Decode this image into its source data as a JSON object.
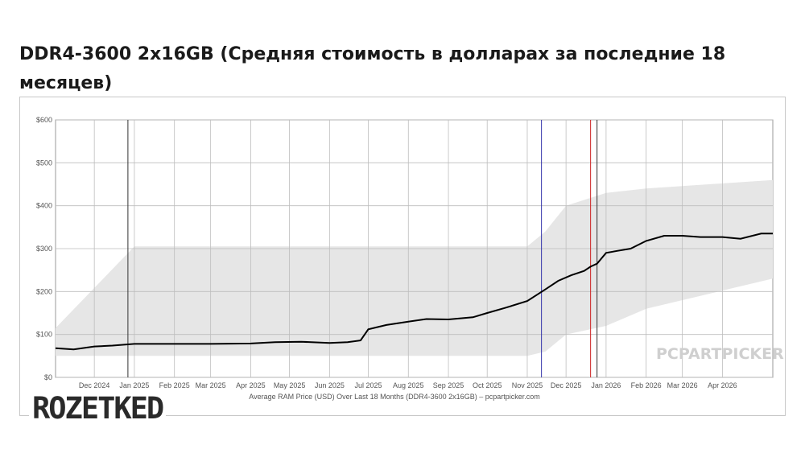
{
  "headline": "DDR4-3600 2x16GB (Средняя стоимость в долларах за последние 18 месяцев)",
  "brand": "ROZETKED",
  "chart_data": {
    "type": "line",
    "xlabel": "Average RAM Price (USD) Over Last 18 Months (DDR4-3600 2x16GB) – pcpartpicker.com",
    "ylabel": "",
    "watermark": "PCPARTPICKER",
    "xlim": [
      "2024-11-01",
      "2026-05-10"
    ],
    "ylim": [
      0,
      600
    ],
    "y_ticks": [
      0,
      100,
      200,
      300,
      400,
      500,
      600
    ],
    "y_tick_labels": [
      "$0",
      "$100",
      "$200",
      "$300",
      "$400",
      "$500",
      "$600"
    ],
    "x_ticks": [
      {
        "date": "2024-12-01",
        "label": "Dec 2024"
      },
      {
        "date": "2025-01-01",
        "label": "Jan 2025"
      },
      {
        "date": "2025-02-01",
        "label": "Feb 2025"
      },
      {
        "date": "2025-03-01",
        "label": "Mar 2025"
      },
      {
        "date": "2025-04-01",
        "label": "Apr 2025"
      },
      {
        "date": "2025-05-01",
        "label": "May 2025"
      },
      {
        "date": "2025-06-01",
        "label": "Jun 2025"
      },
      {
        "date": "2025-07-01",
        "label": "Jul 2025"
      },
      {
        "date": "2025-08-01",
        "label": "Aug 2025"
      },
      {
        "date": "2025-09-01",
        "label": "Sep 2025"
      },
      {
        "date": "2025-10-01",
        "label": "Oct 2025"
      },
      {
        "date": "2025-11-01",
        "label": "Nov 2025"
      },
      {
        "date": "2025-12-01",
        "label": "Dec 2025"
      },
      {
        "date": "2026-01-01",
        "label": "Jan 2026"
      },
      {
        "date": "2026-02-01",
        "label": "Feb 2026"
      },
      {
        "date": "2026-03-01",
        "label": "Mar 2026"
      },
      {
        "date": "2026-04-01",
        "label": "Apr 2026"
      }
    ],
    "grid": true,
    "series": [
      {
        "color": "#000000",
        "x": [
          "2024-11-01",
          "2024-11-15",
          "2024-12-01",
          "2024-12-15",
          "2025-01-01",
          "2025-02-01",
          "2025-03-01",
          "2025-04-01",
          "2025-04-20",
          "2025-05-10",
          "2025-06-01",
          "2025-06-15",
          "2025-06-25",
          "2025-07-01",
          "2025-07-15",
          "2025-08-01",
          "2025-08-15",
          "2025-09-01",
          "2025-09-20",
          "2025-10-01",
          "2025-10-15",
          "2025-11-01",
          "2025-11-15",
          "2025-11-25",
          "2025-12-05",
          "2025-12-15",
          "2025-12-20",
          "2025-12-25",
          "2026-01-01",
          "2026-01-10",
          "2026-01-20",
          "2026-02-01",
          "2026-02-15",
          "2026-03-01",
          "2026-03-15",
          "2026-04-01",
          "2026-04-15",
          "2026-05-01",
          "2026-05-10"
        ],
        "values": [
          68,
          65,
          72,
          74,
          78,
          78,
          78,
          79,
          82,
          83,
          80,
          82,
          86,
          112,
          122,
          130,
          136,
          135,
          140,
          150,
          162,
          178,
          205,
          225,
          238,
          248,
          258,
          265,
          290,
          295,
          300,
          318,
          330,
          330,
          327,
          327,
          323,
          335,
          335
        ]
      }
    ],
    "price_band": {
      "fill": "#e6e6e6",
      "x": [
        "2024-11-01",
        "2025-01-01",
        "2025-06-01",
        "2025-11-01",
        "2025-11-15",
        "2025-12-01",
        "2026-01-01",
        "2026-02-01",
        "2026-05-10"
      ],
      "low": [
        50,
        50,
        50,
        50,
        60,
        100,
        120,
        160,
        230
      ],
      "high": [
        115,
        305,
        305,
        305,
        340,
        400,
        430,
        440,
        460
      ]
    },
    "markers": [
      {
        "date": "2024-12-27",
        "color": "#333333"
      },
      {
        "date": "2025-11-12",
        "color": "#3333aa"
      },
      {
        "date": "2025-12-20",
        "color": "#cc2222"
      },
      {
        "date": "2025-12-25",
        "color": "#333333"
      }
    ]
  }
}
